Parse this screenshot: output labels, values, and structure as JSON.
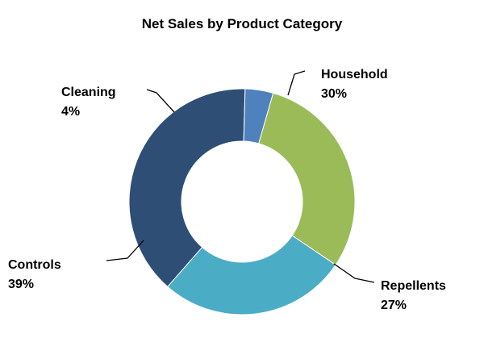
{
  "chart_data": {
    "type": "pie",
    "variant": "donut",
    "title": "Net Sales by Product Category",
    "start_category": "Household",
    "direction": "clockwise",
    "slices": [
      {
        "name": "Household",
        "value": 30,
        "label": "30%",
        "color": "#9bbb59"
      },
      {
        "name": "Repellents",
        "value": 27,
        "label": "27%",
        "color": "#4bacc6"
      },
      {
        "name": "Controls",
        "value": 39,
        "label": "39%",
        "color": "#2e4e76"
      },
      {
        "name": "Cleaning",
        "value": 4,
        "label": "4%",
        "color": "#4f81bd"
      }
    ],
    "legend": "none",
    "data_labels": "outside-with-leader-lines"
  }
}
